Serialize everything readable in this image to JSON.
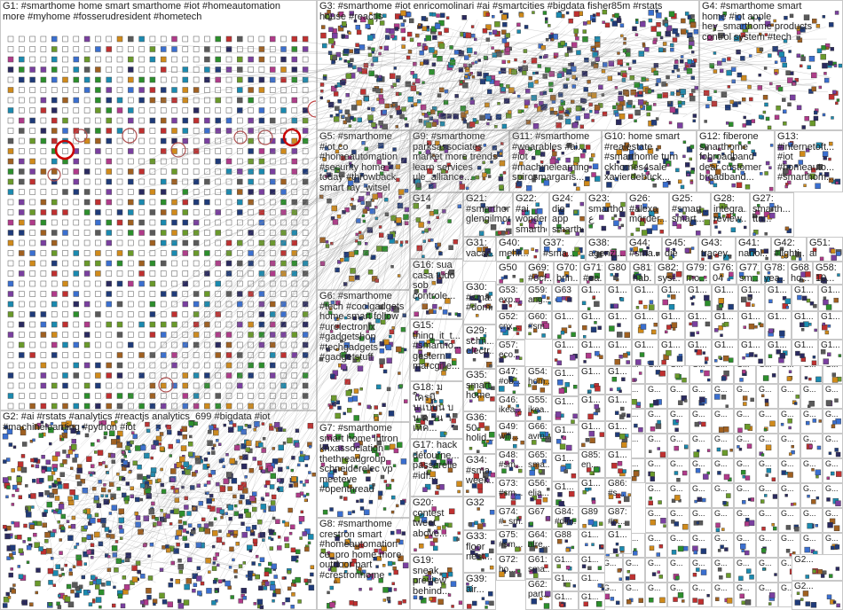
{
  "colors": {
    "edge": "#8a8a8a",
    "ring": "#cc0000",
    "palette": [
      "#1f3b7a",
      "#2c8f2c",
      "#c03030",
      "#7a3fa0",
      "#d08a1a",
      "#1a8ab0",
      "#5a5a5a",
      "#b03a8a",
      "#3a6fd0",
      "#6a9a2a",
      "#a06020",
      "#2a2a60"
    ]
  },
  "groups": [
    {
      "id": "G1",
      "label": "G1: #smarthome home smart smarthome #iot #homeautomation\nmore #myhome #fosserudresident #hometech"
    },
    {
      "id": "G2",
      "label": "G2: #ai #rstats #analytics #reactjs analytics_699 #bigdata #iot\n#machinelearning #python #iot"
    },
    {
      "id": "G3",
      "label": "G3: #smarthome #iot enricomolinari #ai #smartcities #bigdata fisher85m #rstats\nhouse #reactjs"
    },
    {
      "id": "G4",
      "label": "G4: #smarthome smart\nhome #iot apple\nhey_smarthome products\ncontrol system #tech"
    },
    {
      "id": "G5",
      "label": "G5: #smarthome\n#iot co\n#homeautomation\n#security home\ntoday #throwback\nsmart ray_witsel"
    },
    {
      "id": "G6",
      "label": "G6: #smarthome\n#tech #coolgadgets\nhome smart follow\n#urelectronix\n#gadgetshop\n#techgadgets\n#gadgetstuff"
    },
    {
      "id": "G7",
      "label": "G7: #smarthome\nsmart home lutron\nknxassociation\nthethreadgroup\nschneiderelec vp\nmeeteve\n#openthread"
    },
    {
      "id": "G8",
      "label": "G8: #smarthome\ncrestron smart\n#homeautomation\nce_pro home more\noutdoor part\n#crestronhome"
    },
    {
      "id": "G9",
      "label": "G9: #smarthome\nparksassociates\nmarket more trends\nlearn services\nule_alliance..."
    },
    {
      "id": "G10",
      "label": "G10: home smart\n#realestate\n#smarthome turn\nckhomes4sale\nxavierdebück..."
    },
    {
      "id": "G11",
      "label": "G11: #smarthome\n#wearables #ai...\n#iot\n#machinelearning\nspirosmargaris..."
    },
    {
      "id": "G12",
      "label": "G12: fiberone\nsmarthome\nfobroadband\ndear customer\nbroadband..."
    },
    {
      "id": "G13",
      "label": "G13:\n#internetoft...\n#iot\n#homeauto...\n#smarthom..."
    },
    {
      "id": "G14",
      "label": "G14"
    },
    {
      "id": "G15",
      "label": "G15:\nthing_it_t...\n#smartho...\ngestern\nmarcgille..."
    },
    {
      "id": "G16",
      "label": "G16: sua\ncasa tudo\nsob\ncontrole..."
    },
    {
      "id": "G17",
      "label": "G17: hack\ndétourne...\npasserelle\n#idf..."
    },
    {
      "id": "G18",
      "label": "G18: ม\nใครนี\nนแบบน บ\nน ค รน า\nเทค..."
    },
    {
      "id": "G19",
      "label": "G19:\nsneak\npreview\nbehind..."
    },
    {
      "id": "G20",
      "label": "G20:\ncontest\ntweet\nabove..."
    },
    {
      "id": "G21",
      "label": "G21:\n#smarthome\nglengilmor..."
    },
    {
      "id": "G22",
      "label": "G22: #ai\nwondered\nsmartho..."
    },
    {
      "id": "G23",
      "label": "G23:\nsmartho...\nع"
    },
    {
      "id": "G24",
      "label": "G24: die\napp\nsmartho..."
    },
    {
      "id": "G25",
      "label": "G25:\n#smart...\nsmart..."
    },
    {
      "id": "G26",
      "label": "G26:\n#alexa\nmörder..."
    },
    {
      "id": "G27",
      "label": "G27:\nsmarth...\nttn..."
    },
    {
      "id": "G28",
      "label": "G28:\nintegra...\nreview..."
    },
    {
      "id": "G29",
      "label": "G29:\nschn...\nelectr..."
    },
    {
      "id": "G30",
      "label": "G30:\n#sma...\n#dom..."
    },
    {
      "id": "G31",
      "label": "G31:\nvacac..."
    },
    {
      "id": "G32",
      "label": "G32"
    },
    {
      "id": "G33",
      "label": "G33:\nfloor\nnest..."
    },
    {
      "id": "G34",
      "label": "G34:\n#sma...\nweek..."
    },
    {
      "id": "G35",
      "label": "G35:\nsmart...\nhome..."
    },
    {
      "id": "G36",
      "label": "G36:\n50\nholid..."
    },
    {
      "id": "G37",
      "label": "G37:\n#sma..."
    },
    {
      "id": "G38",
      "label": "G38:\nagenzi..."
    },
    {
      "id": "G39",
      "label": "G39:\nair..."
    },
    {
      "id": "G40",
      "label": "G40:\nmehr..."
    },
    {
      "id": "G41",
      "label": "G41:\nnanol..."
    },
    {
      "id": "G42",
      "label": "G42:\n#lighti..."
    },
    {
      "id": "G43",
      "label": "G43:\ntracey..."
    },
    {
      "id": "G44",
      "label": "G44:\n#sma..."
    },
    {
      "id": "G45",
      "label": "G45:\ndie"
    },
    {
      "id": "G46",
      "label": "G46:\nikea..."
    },
    {
      "id": "G47",
      "label": "G47:\n#ob..."
    },
    {
      "id": "G48",
      "label": "G48:\n#sm..."
    },
    {
      "id": "G49",
      "label": "G49:\nwifi..."
    },
    {
      "id": "G50",
      "label": "G50"
    },
    {
      "id": "G51",
      "label": "G51:\nai"
    },
    {
      "id": "G52",
      "label": "G52:\ncnx..."
    },
    {
      "id": "G53",
      "label": "G53:\nexp..."
    },
    {
      "id": "G54",
      "label": "G54:\nhom..."
    },
    {
      "id": "G55",
      "label": "G55:\nikea..."
    },
    {
      "id": "G56",
      "label": "G56:\nelia..."
    },
    {
      "id": "G57",
      "label": "G57:\neco..."
    },
    {
      "id": "G58",
      "label": "G58:\n10..."
    },
    {
      "id": "G59",
      "label": "G59:\nang..."
    },
    {
      "id": "G60",
      "label": "G60:\n#sm..."
    },
    {
      "id": "G61",
      "label": "G61:\nsma..."
    },
    {
      "id": "G62",
      "label": "G62:\npart..."
    },
    {
      "id": "G63",
      "label": "G63"
    },
    {
      "id": "G64",
      "label": "G64:\nalre..."
    },
    {
      "id": "G65",
      "label": "G65:\nsma..."
    },
    {
      "id": "G66",
      "label": "G66:\navm..."
    },
    {
      "id": "G67",
      "label": "G67"
    },
    {
      "id": "G68",
      "label": "G68:\nho..."
    },
    {
      "id": "G69",
      "label": "G69:\n#ocf..."
    },
    {
      "id": "G70",
      "label": "G70:\nbrin..."
    },
    {
      "id": "G71",
      "label": "G71:\n#ea..."
    },
    {
      "id": "G72",
      "label": "G72:\nho..."
    },
    {
      "id": "G73",
      "label": "G73:\n#sm..."
    },
    {
      "id": "G74",
      "label": "G74:\n#_sm..."
    },
    {
      "id": "G75",
      "label": "G75:\n#sm..."
    },
    {
      "id": "G76",
      "label": "G76:\n04"
    },
    {
      "id": "G77",
      "label": "G77:\nsm..."
    },
    {
      "id": "G78",
      "label": "G78:\nyea..."
    },
    {
      "id": "G79",
      "label": "G79:\nmo..."
    },
    {
      "id": "G80",
      "label": "G80"
    },
    {
      "id": "G81",
      "label": "G81:\nhab..."
    },
    {
      "id": "G82",
      "label": "G82:\nsyst..."
    },
    {
      "id": "G83",
      "label": "G83:\n#sm..."
    },
    {
      "id": "G84",
      "label": "G84:\n#dim..."
    },
    {
      "id": "G85",
      "label": "G85:\nen..."
    },
    {
      "id": "G86",
      "label": "G86:\n#s..."
    },
    {
      "id": "G87",
      "label": "G87:\n#n..."
    },
    {
      "id": "G88",
      "label": "G88"
    },
    {
      "id": "G89",
      "label": "G89"
    }
  ],
  "small": {
    "g1": "G1...",
    "g2": "G2...",
    "g": "G..."
  }
}
